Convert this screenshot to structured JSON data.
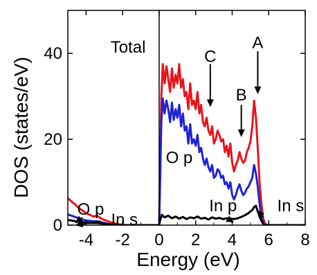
{
  "chart_data": {
    "type": "line",
    "title": "",
    "xlabel": "Energy (eV)",
    "ylabel": "DOS (states/eV)",
    "xlim": [
      -5,
      8
    ],
    "ylim": [
      0,
      50
    ],
    "xticks": [
      "-4",
      "-2",
      "0",
      "2",
      "4",
      "6",
      "8"
    ],
    "yticks": [
      "0",
      "20",
      "40"
    ],
    "grid": false,
    "colors": {
      "red": "#e8141b",
      "blue": "#1f23d4",
      "black": "#000000"
    },
    "series": [
      {
        "color": "#e8141b",
        "x": [
          -5.0,
          -4.8,
          -4.6,
          -4.4,
          -4.2,
          -4.0,
          -3.8,
          -3.6,
          -3.4,
          -3.2,
          -3.0,
          -2.8,
          -2.6,
          -2.4,
          -2.2,
          -2.0,
          -1.8,
          -1.6,
          -1.4,
          -1.2,
          -1.0,
          -0.8,
          -0.6,
          -0.4,
          -0.2,
          -0.05,
          0.0,
          0.05,
          0.12,
          0.2,
          0.3,
          0.4,
          0.5,
          0.6,
          0.7,
          0.8,
          0.9,
          1.0,
          1.1,
          1.2,
          1.3,
          1.4,
          1.5,
          1.6,
          1.7,
          1.8,
          1.9,
          2.0,
          2.1,
          2.2,
          2.3,
          2.4,
          2.5,
          2.6,
          2.7,
          2.8,
          2.9,
          3.0,
          3.1,
          3.2,
          3.3,
          3.4,
          3.5,
          3.6,
          3.7,
          3.8,
          3.9,
          4.0,
          4.1,
          4.2,
          4.3,
          4.4,
          4.5,
          4.6,
          4.7,
          4.8,
          4.9,
          5.0,
          5.1,
          5.2,
          5.3,
          5.4,
          5.5,
          5.6,
          5.7,
          5.8,
          5.9,
          6.0,
          6.5,
          7.0,
          7.5,
          8.0
        ],
        "y": [
          6.3,
          5.5,
          4.8,
          4.0,
          3.4,
          2.8,
          2.4,
          2.0,
          2.2,
          1.6,
          1.2,
          0.9,
          0.6,
          0.4,
          0.2,
          0.1,
          0.0,
          0.0,
          0.0,
          0.0,
          0.0,
          0.0,
          0.0,
          0.0,
          0.0,
          0.0,
          0.0,
          12.0,
          30.0,
          37.5,
          33.0,
          37.0,
          34.0,
          31.0,
          36.5,
          32.0,
          35.0,
          33.0,
          37.5,
          32.0,
          34.0,
          30.0,
          31.0,
          27.0,
          33.0,
          28.0,
          29.0,
          27.0,
          31.0,
          26.0,
          28.0,
          24.0,
          23.0,
          25.0,
          22.0,
          21.0,
          23.0,
          19.0,
          20.0,
          22.0,
          21.0,
          19.5,
          20.0,
          17.0,
          18.5,
          16.0,
          19.0,
          14.5,
          12.5,
          14.0,
          15.0,
          17.0,
          15.5,
          14.5,
          15.0,
          17.0,
          18.0,
          19.5,
          23.0,
          29.0,
          25.0,
          18.0,
          10.0,
          5.0,
          1.5,
          0.3,
          0.0,
          0.0,
          0.0,
          0.0,
          0.0,
          0.0
        ]
      },
      {
        "color": "#1f23d4",
        "x": [
          -5.0,
          -4.8,
          -4.6,
          -4.4,
          -4.2,
          -4.0,
          -3.8,
          -3.6,
          -3.4,
          -3.2,
          -3.0,
          -2.8,
          -2.6,
          -2.4,
          -2.2,
          -2.0,
          -1.8,
          -1.0,
          -0.2,
          -0.05,
          0.0,
          0.05,
          0.12,
          0.2,
          0.3,
          0.4,
          0.5,
          0.6,
          0.7,
          0.8,
          0.9,
          1.0,
          1.1,
          1.2,
          1.3,
          1.4,
          1.5,
          1.6,
          1.7,
          1.8,
          1.9,
          2.0,
          2.1,
          2.2,
          2.3,
          2.4,
          2.5,
          2.6,
          2.7,
          2.8,
          2.9,
          3.0,
          3.1,
          3.2,
          3.3,
          3.4,
          3.5,
          3.6,
          3.7,
          3.8,
          3.9,
          4.0,
          4.1,
          4.2,
          4.3,
          4.4,
          4.5,
          4.6,
          4.7,
          4.8,
          4.9,
          5.0,
          5.1,
          5.2,
          5.3,
          5.4,
          5.5,
          5.6,
          5.7,
          5.8,
          5.9,
          6.0,
          7.0,
          8.0
        ],
        "y": [
          2.5,
          2.2,
          1.9,
          1.6,
          1.3,
          1.1,
          1.0,
          0.9,
          0.9,
          0.7,
          0.5,
          0.3,
          0.2,
          0.1,
          0.05,
          0.0,
          0.0,
          0.0,
          0.0,
          0.0,
          0.0,
          9.0,
          24.0,
          29.5,
          26.0,
          29.0,
          27.0,
          24.0,
          28.5,
          24.5,
          27.0,
          25.0,
          28.0,
          23.0,
          26.0,
          22.0,
          23.0,
          19.0,
          23.5,
          19.0,
          20.0,
          18.5,
          21.0,
          17.0,
          18.0,
          15.5,
          14.0,
          15.5,
          13.5,
          12.5,
          14.0,
          11.0,
          11.5,
          13.0,
          12.5,
          11.0,
          11.5,
          9.5,
          10.0,
          8.5,
          10.0,
          7.0,
          6.0,
          7.0,
          8.5,
          9.5,
          8.0,
          7.0,
          7.5,
          8.5,
          9.0,
          10.0,
          11.0,
          14.0,
          12.0,
          9.0,
          5.0,
          2.0,
          0.5,
          0.1,
          0.0,
          0.0,
          0.0,
          0.0
        ]
      },
      {
        "color": "#000000",
        "x": [
          -5.0,
          -4.8,
          -4.6,
          -4.4,
          -4.2,
          -4.0,
          -3.8,
          -3.6,
          -3.4,
          -3.2,
          -3.0,
          -2.8,
          -2.6,
          -2.4,
          -2.2,
          -2.0,
          -1.0,
          -0.2,
          -0.05,
          0.0,
          0.05,
          0.15,
          0.3,
          0.5,
          0.7,
          0.9,
          1.1,
          1.3,
          1.5,
          1.7,
          1.9,
          2.1,
          2.3,
          2.5,
          2.7,
          2.9,
          3.1,
          3.3,
          3.5,
          3.7,
          3.9,
          4.1,
          4.3,
          4.5,
          4.7,
          4.9,
          5.0,
          5.1,
          5.2,
          5.3,
          5.4,
          5.5,
          5.6,
          5.7,
          5.8,
          6.0,
          7.0,
          8.0
        ],
        "y": [
          1.2,
          1.1,
          0.9,
          0.8,
          0.7,
          0.6,
          0.5,
          0.5,
          0.5,
          0.4,
          0.3,
          0.2,
          0.1,
          0.05,
          0.0,
          0.0,
          0.0,
          0.0,
          0.0,
          0.0,
          1.0,
          2.4,
          1.8,
          2.2,
          1.6,
          2.0,
          1.5,
          1.9,
          1.4,
          1.8,
          1.6,
          2.0,
          1.5,
          1.7,
          1.3,
          1.8,
          1.5,
          1.7,
          1.4,
          1.6,
          1.5,
          1.4,
          1.6,
          1.9,
          2.3,
          2.8,
          3.2,
          3.5,
          4.2,
          4.5,
          3.2,
          2.0,
          1.0,
          0.3,
          0.1,
          0.0,
          0.0,
          0.0
        ]
      }
    ],
    "annotations": [
      {
        "text": "Total",
        "x": -1.7,
        "y": 40.2
      },
      {
        "text": "A",
        "x": 5.4,
        "y": 41.2
      },
      {
        "text": "B",
        "x": 4.5,
        "y": 29.0
      },
      {
        "text": "C",
        "x": 2.8,
        "y": 38.0
      },
      {
        "text": "O p",
        "x": 1.1,
        "y": 14.4
      },
      {
        "text": "O p",
        "x": -3.75,
        "y": 2.4
      },
      {
        "text": "In s",
        "x": -1.9,
        "y": 0.0
      },
      {
        "text": "In p",
        "x": 3.5,
        "y": 3.2
      },
      {
        "text": "In s",
        "x": 7.2,
        "y": 3.2
      }
    ]
  }
}
